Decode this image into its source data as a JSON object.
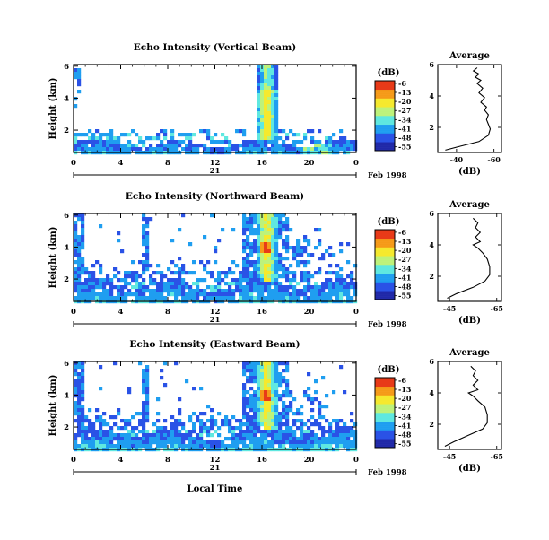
{
  "figure": {
    "date_label": "Feb 1998",
    "bottom_xlabel": "Local Time",
    "colorbar_unit_label": "(dB)",
    "average_title": "Average",
    "average_xlabel": "(dB)"
  },
  "chart_data": [
    {
      "type": "heatmap",
      "title": "Echo Intensity (Vertical Beam)",
      "ylabel": "Height (km)",
      "x_ticks": [
        "0",
        "4",
        "8",
        "12",
        "16",
        "20",
        "0"
      ],
      "x_range_hours": [
        0,
        24
      ],
      "y_ticks": [
        "2",
        "4",
        "6"
      ],
      "y_range_km": [
        0.6,
        6.1
      ],
      "day_label": "21",
      "colorbar": {
        "ticks": [
          "-6",
          "-13",
          "-20",
          "-27",
          "-34",
          "-41",
          "-48",
          "-55"
        ],
        "range_db": [
          -58,
          -4
        ]
      },
      "colors": {
        "scale": [
          "#2028a8",
          "#2a52e6",
          "#1f9ef0",
          "#5fe8e0",
          "#bdf27a",
          "#f5e92e",
          "#f59a18",
          "#e83a18"
        ]
      },
      "profile": {
        "x_ticks": [
          "-40",
          "-60"
        ],
        "x_tick_values": [
          -40,
          -60
        ],
        "x_range_db": [
          -30,
          -64
        ],
        "y_ticks": [
          "2",
          "4",
          "6"
        ],
        "y_range_km": [
          0.4,
          6.0
        ],
        "points": [
          [
            -34,
            0.55
          ],
          [
            -42,
            0.8
          ],
          [
            -52,
            1.1
          ],
          [
            -57,
            1.5
          ],
          [
            -58,
            1.9
          ],
          [
            -57,
            2.2
          ],
          [
            -56,
            2.5
          ],
          [
            -57,
            2.8
          ],
          [
            -55,
            3.1
          ],
          [
            -56,
            3.3
          ],
          [
            -53,
            3.6
          ],
          [
            -55,
            3.9
          ],
          [
            -52,
            4.2
          ],
          [
            -54,
            4.5
          ],
          [
            -51,
            4.8
          ],
          [
            -53,
            5.0
          ],
          [
            -50,
            5.2
          ],
          [
            -52,
            5.4
          ],
          [
            -49,
            5.6
          ],
          [
            -51,
            5.8
          ]
        ]
      }
    },
    {
      "type": "heatmap",
      "title": "Echo Intensity (Northward Beam)",
      "ylabel": "Height (km)",
      "x_ticks": [
        "0",
        "4",
        "8",
        "12",
        "16",
        "20",
        "0"
      ],
      "x_range_hours": [
        0,
        24
      ],
      "y_ticks": [
        "2",
        "4",
        "6"
      ],
      "y_range_km": [
        0.6,
        6.1
      ],
      "day_label": "21",
      "colorbar": {
        "ticks": [
          "-6",
          "-13",
          "-20",
          "-27",
          "-34",
          "-41",
          "-48",
          "-55"
        ],
        "range_db": [
          -58,
          -4
        ]
      },
      "colors": {
        "scale": [
          "#2028a8",
          "#2a52e6",
          "#1f9ef0",
          "#5fe8e0",
          "#bdf27a",
          "#f5e92e",
          "#f59a18",
          "#e83a18"
        ]
      },
      "profile": {
        "x_ticks": [
          "-45",
          "-65"
        ],
        "x_tick_values": [
          -45,
          -65
        ],
        "x_range_db": [
          -40,
          -67
        ],
        "y_ticks": [
          "2",
          "4",
          "6"
        ],
        "y_range_km": [
          0.4,
          6.0
        ],
        "points": [
          [
            -44,
            0.6
          ],
          [
            -48,
            0.9
          ],
          [
            -55,
            1.3
          ],
          [
            -60,
            1.7
          ],
          [
            -62,
            2.1
          ],
          [
            -62,
            2.6
          ],
          [
            -61,
            3.1
          ],
          [
            -59,
            3.5
          ],
          [
            -57,
            3.8
          ],
          [
            -55,
            4.0
          ],
          [
            -58,
            4.2
          ],
          [
            -56,
            4.5
          ],
          [
            -58,
            4.8
          ],
          [
            -56,
            5.1
          ],
          [
            -57,
            5.4
          ],
          [
            -55,
            5.7
          ]
        ]
      }
    },
    {
      "type": "heatmap",
      "title": "Echo Intensity (Eastward Beam)",
      "ylabel": "Height (km)",
      "x_ticks": [
        "0",
        "4",
        "8",
        "12",
        "16",
        "20",
        "0"
      ],
      "x_range_hours": [
        0,
        24
      ],
      "y_ticks": [
        "2",
        "4",
        "6"
      ],
      "y_range_km": [
        0.6,
        6.1
      ],
      "day_label": "21",
      "colorbar": {
        "ticks": [
          "-6",
          "-13",
          "-20",
          "-27",
          "-34",
          "-41",
          "-48",
          "-55"
        ],
        "range_db": [
          -58,
          -4
        ]
      },
      "colors": {
        "scale": [
          "#2028a8",
          "#2a52e6",
          "#1f9ef0",
          "#5fe8e0",
          "#bdf27a",
          "#f5e92e",
          "#f59a18",
          "#e83a18"
        ]
      },
      "profile": {
        "x_ticks": [
          "-45",
          "-65"
        ],
        "x_tick_values": [
          -45,
          -65
        ],
        "x_range_db": [
          -40,
          -67
        ],
        "y_ticks": [
          "2",
          "4",
          "6"
        ],
        "y_range_km": [
          0.4,
          6.0
        ],
        "points": [
          [
            -43,
            0.6
          ],
          [
            -47,
            0.9
          ],
          [
            -53,
            1.3
          ],
          [
            -59,
            1.7
          ],
          [
            -61,
            2.1
          ],
          [
            -61,
            2.6
          ],
          [
            -60,
            3.1
          ],
          [
            -57,
            3.5
          ],
          [
            -55,
            3.8
          ],
          [
            -53,
            4.0
          ],
          [
            -57,
            4.2
          ],
          [
            -55,
            4.5
          ],
          [
            -57,
            4.8
          ],
          [
            -55,
            5.1
          ],
          [
            -56,
            5.4
          ],
          [
            -54,
            5.7
          ]
        ]
      }
    }
  ]
}
